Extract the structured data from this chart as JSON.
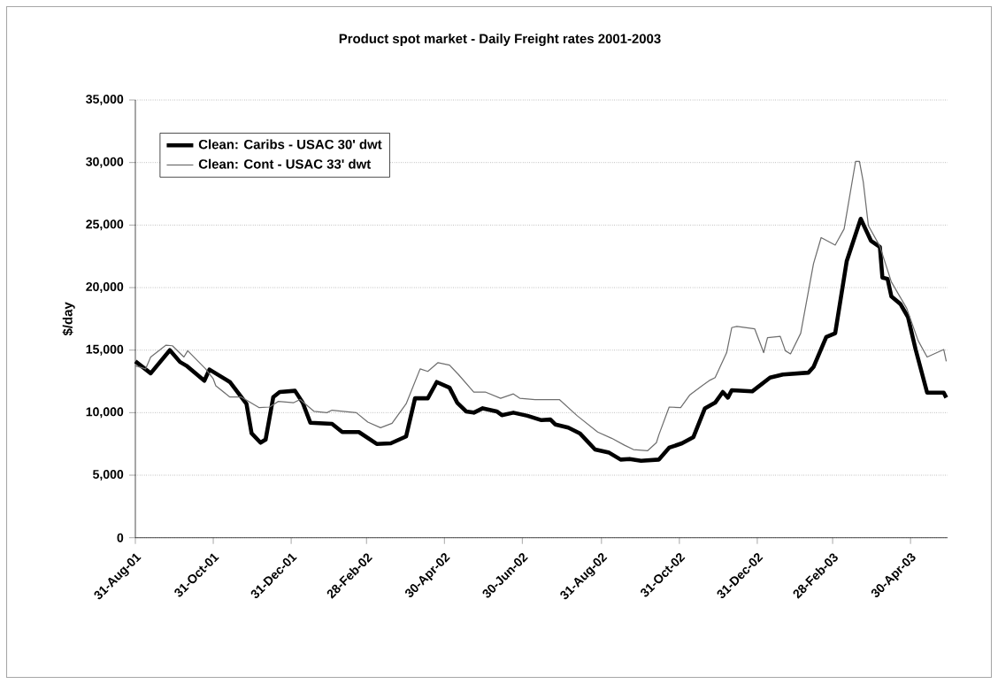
{
  "chart_data": {
    "type": "line",
    "title": "Product spot market - Daily Freight rates 2001-2003",
    "ylabel": "$/day",
    "xlim": [
      "2001-08-31",
      "2003-05-29"
    ],
    "ylim": [
      0,
      35000
    ],
    "xticks": [
      {
        "value": "2001-08-31",
        "label": "31-Aug-01"
      },
      {
        "value": "2001-10-31",
        "label": "31-Oct-01"
      },
      {
        "value": "2001-12-31",
        "label": "31-Dec-01"
      },
      {
        "value": "2002-02-28",
        "label": "28-Feb-02"
      },
      {
        "value": "2002-04-30",
        "label": "30-Apr-02"
      },
      {
        "value": "2002-06-30",
        "label": "30-Jun-02"
      },
      {
        "value": "2002-08-31",
        "label": "31-Aug-02"
      },
      {
        "value": "2002-10-31",
        "label": "31-Oct-02"
      },
      {
        "value": "2002-12-31",
        "label": "31-Dec-02"
      },
      {
        "value": "2003-02-28",
        "label": "28-Feb-03"
      },
      {
        "value": "2003-04-30",
        "label": "30-Apr-03"
      }
    ],
    "yticks": [
      0,
      {
        "value": 5000,
        "label": "5,000"
      },
      {
        "value": 10000,
        "label": "10,000"
      },
      {
        "value": 15000,
        "label": "15,000"
      },
      {
        "value": 20000,
        "label": "20,000"
      },
      {
        "value": 25000,
        "label": "25,000"
      },
      {
        "value": 30000,
        "label": "30,000"
      },
      {
        "value": 35000,
        "label": "35,000"
      }
    ],
    "grid": "y",
    "legend": "top left",
    "line_style": "solid",
    "series": [
      {
        "name": "Clean: Caribs - USAC 30' dwt",
        "color": "#000000",
        "x": [
          "2001-08-31",
          "2001-09-12",
          "2001-09-27",
          "2001-10-05",
          "2001-10-10",
          "2001-10-24",
          "2001-10-28",
          "2001-11-13",
          "2001-11-26",
          "2001-11-30",
          "2001-12-07",
          "2001-12-11",
          "2001-12-17",
          "2001-12-22",
          "2002-01-03",
          "2002-01-09",
          "2002-01-15",
          "2002-02-01",
          "2002-02-09",
          "2002-02-22",
          "2002-03-08",
          "2002-03-19",
          "2002-03-31",
          "2002-04-07",
          "2002-04-17",
          "2002-04-24",
          "2002-05-04",
          "2002-05-10",
          "2002-05-17",
          "2002-05-23",
          "2002-05-30",
          "2002-06-10",
          "2002-06-14",
          "2002-06-23",
          "2002-07-04",
          "2002-07-15",
          "2002-07-22",
          "2002-07-26",
          "2002-08-05",
          "2002-08-14",
          "2002-08-26",
          "2002-09-06",
          "2002-09-15",
          "2002-09-22",
          "2002-10-01",
          "2002-10-15",
          "2002-10-23",
          "2002-11-02",
          "2002-11-11",
          "2002-11-20",
          "2002-11-28",
          "2002-12-04",
          "2002-12-08",
          "2002-12-11",
          "2002-12-27",
          "2003-01-10",
          "2003-01-20",
          "2003-02-09",
          "2003-02-13",
          "2003-02-23",
          "2003-03-02",
          "2003-03-11",
          "2003-03-22",
          "2003-03-30",
          "2003-04-06",
          "2003-04-08",
          "2003-04-12",
          "2003-04-15",
          "2003-04-22",
          "2003-04-28",
          "2003-05-04",
          "2003-05-13",
          "2003-05-26",
          "2003-05-28"
        ],
        "values": [
          14100,
          13150,
          15000,
          14050,
          13750,
          12550,
          13450,
          12450,
          10700,
          8350,
          7600,
          7850,
          11250,
          11650,
          11750,
          10800,
          9200,
          9100,
          8450,
          8450,
          7500,
          7550,
          8100,
          11150,
          11150,
          12450,
          12000,
          10800,
          10100,
          10000,
          10350,
          10100,
          9800,
          10000,
          9750,
          9400,
          9450,
          9050,
          8800,
          8350,
          7050,
          6800,
          6250,
          6300,
          6150,
          6250,
          7200,
          7550,
          8050,
          10350,
          10800,
          11650,
          11200,
          11800,
          11700,
          12800,
          13050,
          13200,
          13650,
          16050,
          16350,
          22100,
          25500,
          23750,
          23250,
          20800,
          20700,
          19300,
          18700,
          17650,
          15050,
          11600,
          11600,
          11200
        ]
      },
      {
        "name": "Clean: Cont - USAC 33' dwt",
        "color": "#6e6e6e",
        "x": [
          "2001-08-31",
          "2001-09-08",
          "2001-09-12",
          "2001-09-24",
          "2001-09-29",
          "2001-10-08",
          "2001-10-11",
          "2001-10-25",
          "2001-10-31",
          "2001-11-02",
          "2001-11-13",
          "2001-11-22",
          "2001-12-06",
          "2001-12-14",
          "2001-12-21",
          "2002-01-02",
          "2002-01-07",
          "2002-01-18",
          "2002-01-28",
          "2002-02-01",
          "2002-02-20",
          "2002-03-01",
          "2002-03-11",
          "2002-03-20",
          "2002-03-31",
          "2002-04-11",
          "2002-04-17",
          "2002-04-25",
          "2002-05-04",
          "2002-05-11",
          "2002-05-23",
          "2002-06-01",
          "2002-06-13",
          "2002-06-23",
          "2002-06-28",
          "2002-07-10",
          "2002-07-29",
          "2002-08-12",
          "2002-08-28",
          "2002-09-08",
          "2002-09-18",
          "2002-09-25",
          "2002-10-06",
          "2002-10-13",
          "2002-10-15",
          "2002-10-23",
          "2002-11-01",
          "2002-11-08",
          "2002-11-17",
          "2002-11-24",
          "2002-11-28",
          "2002-12-07",
          "2002-12-11",
          "2002-12-15",
          "2002-12-29",
          "2003-01-05",
          "2003-01-08",
          "2003-01-18",
          "2003-01-22",
          "2003-01-26",
          "2003-02-03",
          "2003-02-13",
          "2003-02-19",
          "2003-03-02",
          "2003-03-09",
          "2003-03-18",
          "2003-03-21",
          "2003-03-24",
          "2003-03-28",
          "2003-04-06",
          "2003-04-15",
          "2003-04-27",
          "2003-05-06",
          "2003-05-13",
          "2003-05-26",
          "2003-05-28"
        ],
        "values": [
          13750,
          13500,
          14450,
          15400,
          15350,
          14450,
          14950,
          13500,
          12700,
          12150,
          11250,
          11250,
          10400,
          10450,
          10900,
          10800,
          11050,
          10100,
          10000,
          10200,
          10000,
          9250,
          8800,
          9150,
          10700,
          13500,
          13300,
          14000,
          13800,
          13050,
          11650,
          11650,
          11150,
          11500,
          11150,
          11050,
          11050,
          9750,
          8450,
          7950,
          7400,
          7050,
          6950,
          7600,
          8250,
          10450,
          10400,
          11400,
          12100,
          12600,
          12800,
          14800,
          16800,
          16900,
          16700,
          14800,
          16000,
          16100,
          14950,
          14700,
          16350,
          21900,
          24000,
          23400,
          24700,
          30100,
          30100,
          28450,
          24950,
          23300,
          20450,
          18350,
          15750,
          14450,
          15050,
          14100
        ]
      }
    ]
  }
}
